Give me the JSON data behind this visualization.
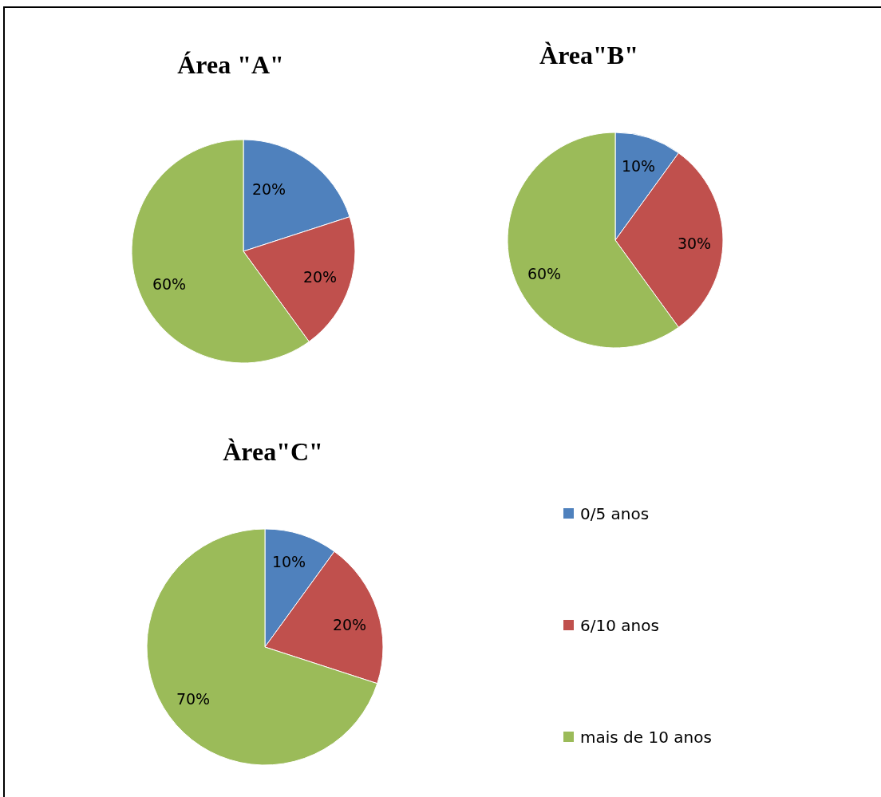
{
  "chart_data": [
    {
      "type": "pie",
      "title": "Área \"A\"",
      "categories": [
        null,
        null,
        null
      ],
      "values": [
        20,
        20,
        60
      ],
      "value_labels": [
        "20%",
        "20%",
        "60%"
      ],
      "colors": [
        "#4f81bd",
        "#c0504d",
        "#9bbb59"
      ]
    },
    {
      "type": "pie",
      "title": "Àrea\"B\"",
      "categories": [
        null,
        null,
        null
      ],
      "values": [
        10,
        30,
        60
      ],
      "value_labels": [
        "10%",
        "30%",
        "60%"
      ],
      "colors": [
        "#4f81bd",
        "#c0504d",
        "#9bbb59"
      ]
    },
    {
      "type": "pie",
      "title": "Àrea\"C\"",
      "categories": [
        "0/5 anos",
        "6/10 anos",
        "mais de 10 anos"
      ],
      "values": [
        10,
        20,
        70
      ],
      "value_labels": [
        "10%",
        "20%",
        "70%"
      ],
      "colors": [
        "#4f81bd",
        "#c0504d",
        "#9bbb59"
      ],
      "legend": "right"
    }
  ]
}
